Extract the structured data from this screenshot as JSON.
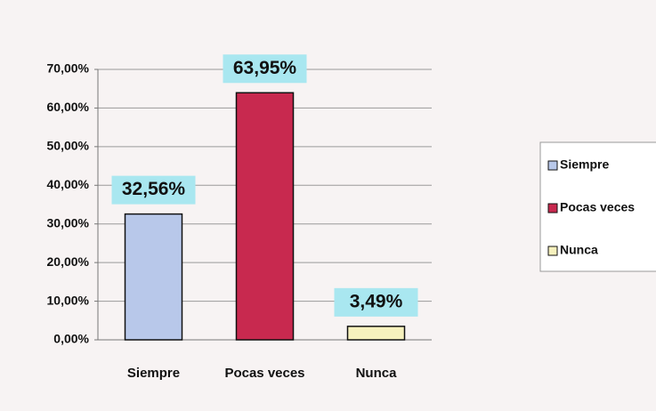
{
  "chart_data": {
    "type": "bar",
    "categories": [
      "Siempre",
      "Pocas veces",
      "Nunca"
    ],
    "values": [
      32.56,
      63.95,
      3.49
    ],
    "value_labels": [
      "32,56%",
      "63,95%",
      "3,49%"
    ],
    "colors": [
      "#b8c8ea",
      "#c8294f",
      "#f6f1bd"
    ],
    "ylim": [
      0,
      70
    ],
    "yticks": [
      {
        "value": 0,
        "label": "0,00%"
      },
      {
        "value": 10,
        "label": "10,00%"
      },
      {
        "value": 20,
        "label": "20,00%"
      },
      {
        "value": 30,
        "label": "30,00%"
      },
      {
        "value": 40,
        "label": "40,00%"
      },
      {
        "value": 50,
        "label": "50,00%"
      },
      {
        "value": 60,
        "label": "60,00%"
      },
      {
        "value": 70,
        "label": "70,00%"
      }
    ],
    "grid": true,
    "legend": "right"
  }
}
